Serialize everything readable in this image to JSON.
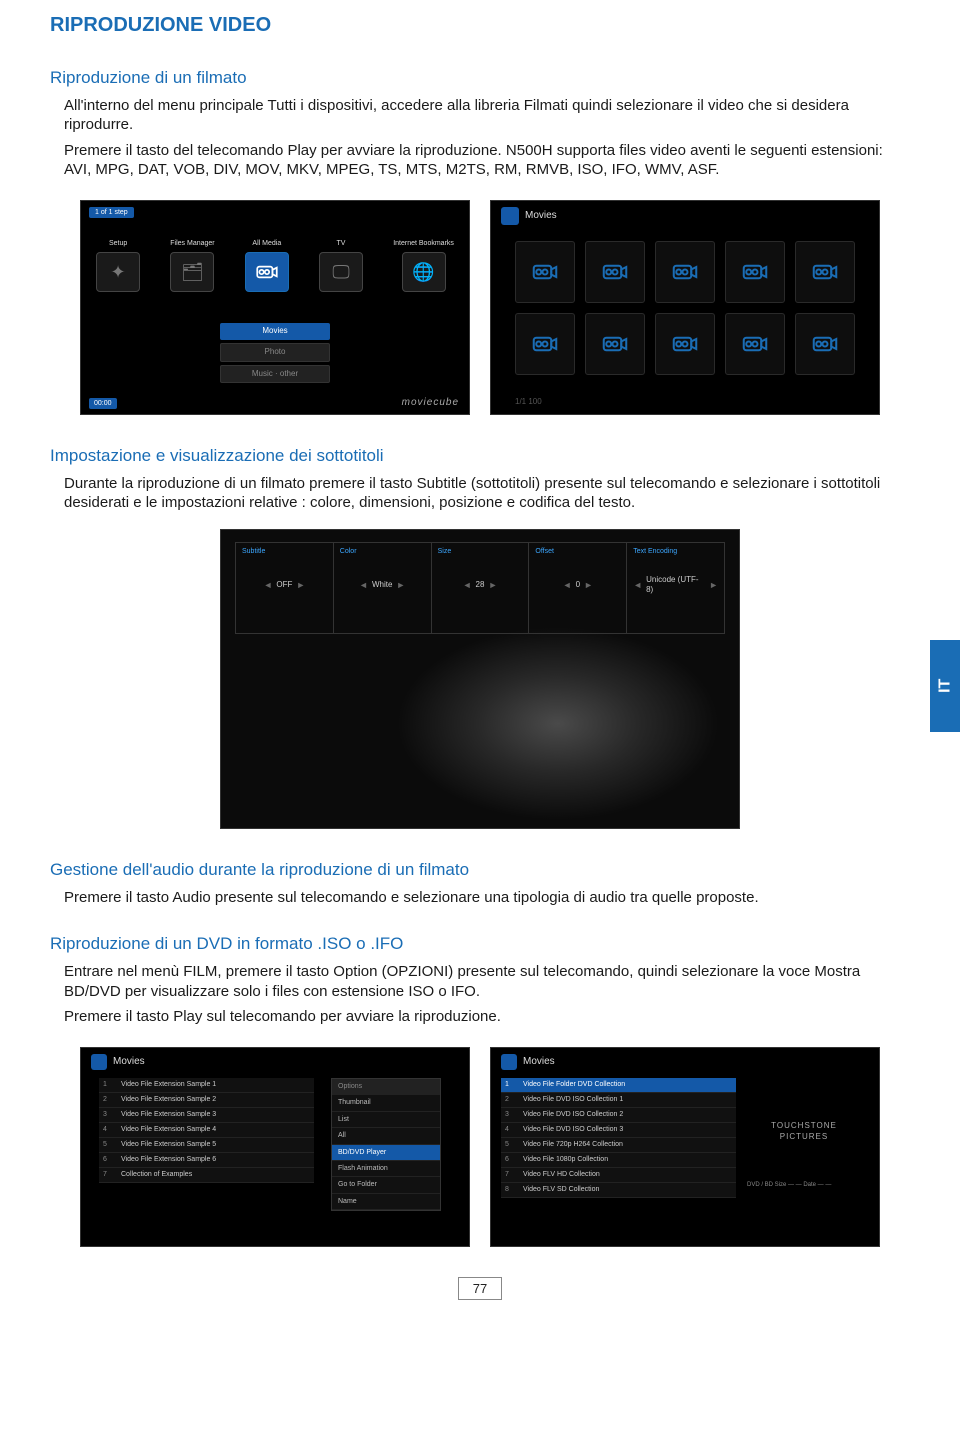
{
  "page": {
    "title": "RIPRODUZIONE VIDEO",
    "number": "77",
    "side_label": "IT"
  },
  "section1": {
    "heading": "Riproduzione di un filmato",
    "p1": "All'interno del menu principale Tutti i dispositivi, accedere alla libreria Filmati quindi selezionare il video che si desidera riprodurre.",
    "p2": "Premere il tasto del telecomando Play per avviare la riproduzione. N500H supporta files video aventi le seguenti estensioni: AVI, MPG, DAT, VOB, DIV, MOV, MKV, MPEG, TS, MTS, M2TS, RM, RMVB, ISO, IFO, WMV, ASF."
  },
  "section2": {
    "heading": "Impostazione e visualizzazione dei sottotitoli",
    "p1": "Durante la riproduzione di un filmato premere il tasto Subtitle (sottotitoli) presente sul telecomando e selezionare i sottotitoli desiderati e le impostazioni relative : colore, dimensioni, posizione e codifica del testo."
  },
  "section3": {
    "heading": "Gestione dell'audio durante la riproduzione di un filmato",
    "p1": "Premere il tasto Audio presente sul telecomando e selezionare una tipologia di audio tra quelle proposte."
  },
  "section4": {
    "heading": "Riproduzione di un DVD in formato .ISO o .IFO",
    "p1": "Entrare nel menù FILM, premere il tasto Option (OPZIONI) presente sul telecomando, quindi selezionare la voce Mostra BD/DVD per visualizzare solo i files con estensione ISO o IFO.",
    "p2": "Premere il tasto Play sul telecomando per avviare la riproduzione."
  },
  "screens": {
    "mainmenu": {
      "chip_top": "1 of 1 step",
      "items": [
        "Setup",
        "Files Manager",
        "All Media",
        "TV",
        "Internet Bookmarks"
      ],
      "active_index": 2,
      "mid_buttons": [
        "Movies",
        "Photo",
        "Music · other"
      ],
      "brand": "moviecube",
      "time": "00:00"
    },
    "thumbs": {
      "title": "Movies",
      "count": 10,
      "footer": "1/1 100"
    },
    "subs": {
      "cells": [
        {
          "label": "Subtitle",
          "value": "OFF"
        },
        {
          "label": "Color",
          "value": "White"
        },
        {
          "label": "Size",
          "value": "28"
        },
        {
          "label": "Offset",
          "value": "0"
        },
        {
          "label": "Text Encoding",
          "value": "Unicode (UTF-8)"
        }
      ]
    },
    "list_left": {
      "title": "Movies",
      "rows": [
        "Video File Extension Sample 1",
        "Video File Extension Sample 2",
        "Video File Extension Sample 3",
        "Video File Extension Sample 4",
        "Video File Extension Sample 5",
        "Video File Extension Sample 6",
        "Collection of Examples"
      ],
      "ctx": [
        "Options",
        "Thumbnail",
        "List",
        "All",
        "BD/DVD Player",
        "Flash Animation",
        "Go to Folder",
        "Name"
      ]
    },
    "list_right": {
      "title": "Movies",
      "rows": [
        "Video File Folder DVD Collection",
        "Video File DVD ISO Collection 1",
        "Video File DVD ISO Collection 2",
        "Video File DVD ISO Collection 3",
        "Video File 720p H264 Collection",
        "Video File 1080p Collection",
        "Video FLV HD Collection",
        "Video FLV SD Collection"
      ],
      "side_brand": "TOUCHSTONE PICTURES",
      "side_meta": "DVD / BD\nSize — —\nDate — —"
    }
  },
  "colors": {
    "accent": "#1a6db5",
    "accent_fill": "#1459a8",
    "text": "#1a1a1a",
    "bg": "#ffffff",
    "screen_bg": "#000000"
  }
}
